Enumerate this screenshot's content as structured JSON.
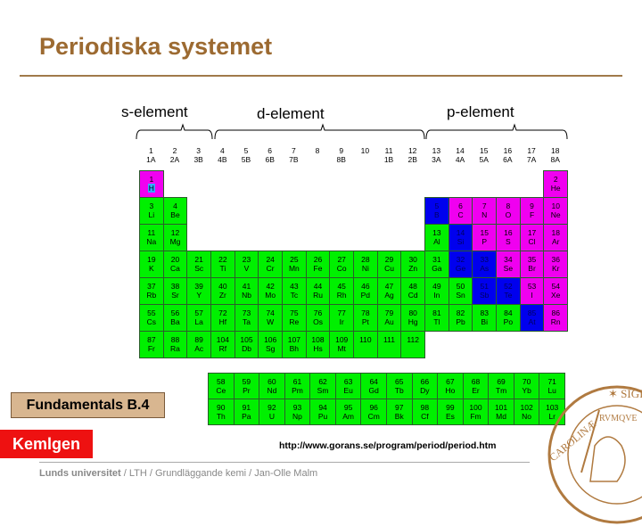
{
  "title": "Periodiska systemet",
  "block_labels": {
    "s": "s-element",
    "d": "d-element",
    "p": "p-element"
  },
  "groups": [
    {
      "n": "1",
      "old": "1A"
    },
    {
      "n": "2",
      "old": "2A"
    },
    {
      "n": "3",
      "old": "3B"
    },
    {
      "n": "4",
      "old": "4B"
    },
    {
      "n": "5",
      "old": "5B"
    },
    {
      "n": "6",
      "old": "6B"
    },
    {
      "n": "7",
      "old": "7B"
    },
    {
      "n": "8",
      "old": ""
    },
    {
      "n": "9",
      "old": "8B"
    },
    {
      "n": "10",
      "old": ""
    },
    {
      "n": "11",
      "old": "1B"
    },
    {
      "n": "12",
      "old": "2B"
    },
    {
      "n": "13",
      "old": "3A"
    },
    {
      "n": "14",
      "old": "4A"
    },
    {
      "n": "15",
      "old": "5A"
    },
    {
      "n": "16",
      "old": "6A"
    },
    {
      "n": "17",
      "old": "7A"
    },
    {
      "n": "18",
      "old": "8A"
    }
  ],
  "colors": {
    "metal": "#00f000",
    "nonmetal": "#f000f0",
    "metalloid": "#0000ee",
    "title": "#9c6a31"
  },
  "elements": [
    [
      "1",
      "H",
      0,
      0,
      "m"
    ],
    [
      "2",
      "He",
      17,
      0,
      "m"
    ],
    [
      "3",
      "Li",
      0,
      1,
      "g"
    ],
    [
      "4",
      "Be",
      1,
      1,
      "g"
    ],
    [
      "5",
      "B",
      12,
      1,
      "b"
    ],
    [
      "6",
      "C",
      13,
      1,
      "m"
    ],
    [
      "7",
      "N",
      14,
      1,
      "m"
    ],
    [
      "8",
      "O",
      15,
      1,
      "m"
    ],
    [
      "9",
      "F",
      16,
      1,
      "m"
    ],
    [
      "10",
      "Ne",
      17,
      1,
      "m"
    ],
    [
      "11",
      "Na",
      0,
      2,
      "g"
    ],
    [
      "12",
      "Mg",
      1,
      2,
      "g"
    ],
    [
      "13",
      "Al",
      12,
      2,
      "g"
    ],
    [
      "14",
      "Si",
      13,
      2,
      "b"
    ],
    [
      "15",
      "P",
      14,
      2,
      "m"
    ],
    [
      "16",
      "S",
      15,
      2,
      "m"
    ],
    [
      "17",
      "Cl",
      16,
      2,
      "m"
    ],
    [
      "18",
      "Ar",
      17,
      2,
      "m"
    ],
    [
      "19",
      "K",
      0,
      3,
      "g"
    ],
    [
      "20",
      "Ca",
      1,
      3,
      "g"
    ],
    [
      "21",
      "Sc",
      2,
      3,
      "g"
    ],
    [
      "22",
      "Ti",
      3,
      3,
      "g"
    ],
    [
      "23",
      "V",
      4,
      3,
      "g"
    ],
    [
      "24",
      "Cr",
      5,
      3,
      "g"
    ],
    [
      "25",
      "Mn",
      6,
      3,
      "g"
    ],
    [
      "26",
      "Fe",
      7,
      3,
      "g"
    ],
    [
      "27",
      "Co",
      8,
      3,
      "g"
    ],
    [
      "28",
      "Ni",
      9,
      3,
      "g"
    ],
    [
      "29",
      "Cu",
      10,
      3,
      "g"
    ],
    [
      "30",
      "Zn",
      11,
      3,
      "g"
    ],
    [
      "31",
      "Ga",
      12,
      3,
      "g"
    ],
    [
      "32",
      "Ge",
      13,
      3,
      "b"
    ],
    [
      "33",
      "As",
      14,
      3,
      "b"
    ],
    [
      "34",
      "Se",
      15,
      3,
      "m"
    ],
    [
      "35",
      "Br",
      16,
      3,
      "m"
    ],
    [
      "36",
      "Kr",
      17,
      3,
      "m"
    ],
    [
      "37",
      "Rb",
      0,
      4,
      "g"
    ],
    [
      "38",
      "Sr",
      1,
      4,
      "g"
    ],
    [
      "39",
      "Y",
      2,
      4,
      "g"
    ],
    [
      "40",
      "Zr",
      3,
      4,
      "g"
    ],
    [
      "41",
      "Nb",
      4,
      4,
      "g"
    ],
    [
      "42",
      "Mo",
      5,
      4,
      "g"
    ],
    [
      "43",
      "Tc",
      6,
      4,
      "g"
    ],
    [
      "44",
      "Ru",
      7,
      4,
      "g"
    ],
    [
      "45",
      "Rh",
      8,
      4,
      "g"
    ],
    [
      "46",
      "Pd",
      9,
      4,
      "g"
    ],
    [
      "47",
      "Ag",
      10,
      4,
      "g"
    ],
    [
      "48",
      "Cd",
      11,
      4,
      "g"
    ],
    [
      "49",
      "In",
      12,
      4,
      "g"
    ],
    [
      "50",
      "Sn",
      13,
      4,
      "g"
    ],
    [
      "51",
      "Sb",
      14,
      4,
      "b"
    ],
    [
      "52",
      "Te",
      15,
      4,
      "b"
    ],
    [
      "53",
      "I",
      16,
      4,
      "m"
    ],
    [
      "54",
      "Xe",
      17,
      4,
      "m"
    ],
    [
      "55",
      "Cs",
      0,
      5,
      "g"
    ],
    [
      "56",
      "Ba",
      1,
      5,
      "g"
    ],
    [
      "57",
      "La",
      2,
      5,
      "g"
    ],
    [
      "72",
      "Hf",
      3,
      5,
      "g"
    ],
    [
      "73",
      "Ta",
      4,
      5,
      "g"
    ],
    [
      "74",
      "W",
      5,
      5,
      "g"
    ],
    [
      "75",
      "Re",
      6,
      5,
      "g"
    ],
    [
      "76",
      "Os",
      7,
      5,
      "g"
    ],
    [
      "77",
      "Ir",
      8,
      5,
      "g"
    ],
    [
      "78",
      "Pt",
      9,
      5,
      "g"
    ],
    [
      "79",
      "Au",
      10,
      5,
      "g"
    ],
    [
      "80",
      "Hg",
      11,
      5,
      "g"
    ],
    [
      "81",
      "Tl",
      12,
      5,
      "g"
    ],
    [
      "82",
      "Pb",
      13,
      5,
      "g"
    ],
    [
      "83",
      "Bi",
      14,
      5,
      "g"
    ],
    [
      "84",
      "Po",
      15,
      5,
      "g"
    ],
    [
      "85",
      "At",
      16,
      5,
      "b"
    ],
    [
      "86",
      "Rn",
      17,
      5,
      "m"
    ],
    [
      "87",
      "Fr",
      0,
      6,
      "g"
    ],
    [
      "88",
      "Ra",
      1,
      6,
      "g"
    ],
    [
      "89",
      "Ac",
      2,
      6,
      "g"
    ],
    [
      "104",
      "Rf",
      3,
      6,
      "g"
    ],
    [
      "105",
      "Db",
      4,
      6,
      "g"
    ],
    [
      "106",
      "Sg",
      5,
      6,
      "g"
    ],
    [
      "107",
      "Bh",
      6,
      6,
      "g"
    ],
    [
      "108",
      "Hs",
      7,
      6,
      "g"
    ],
    [
      "109",
      "Mt",
      8,
      6,
      "g"
    ],
    [
      "110",
      "",
      9,
      6,
      "g"
    ],
    [
      "111",
      "",
      10,
      6,
      "g"
    ],
    [
      "112",
      "",
      11,
      6,
      "g"
    ]
  ],
  "f_block": [
    [
      [
        "58",
        "Ce"
      ],
      [
        "59",
        "Pr"
      ],
      [
        "60",
        "Nd"
      ],
      [
        "61",
        "Pm"
      ],
      [
        "62",
        "Sm"
      ],
      [
        "63",
        "Eu"
      ],
      [
        "64",
        "Gd"
      ],
      [
        "65",
        "Tb"
      ],
      [
        "66",
        "Dy"
      ],
      [
        "67",
        "Ho"
      ],
      [
        "68",
        "Er"
      ],
      [
        "69",
        "Tm"
      ],
      [
        "70",
        "Yb"
      ],
      [
        "71",
        "Lu"
      ]
    ],
    [
      [
        "90",
        "Th"
      ],
      [
        "91",
        "Pa"
      ],
      [
        "92",
        "U"
      ],
      [
        "93",
        "Np"
      ],
      [
        "94",
        "Pu"
      ],
      [
        "95",
        "Am"
      ],
      [
        "96",
        "Cm"
      ],
      [
        "97",
        "Bk"
      ],
      [
        "98",
        "Cf"
      ],
      [
        "99",
        "Es"
      ],
      [
        "100",
        "Fm"
      ],
      [
        "101",
        "Md"
      ],
      [
        "102",
        "No"
      ],
      [
        "103",
        "Lr"
      ]
    ]
  ],
  "badge": "Fundamentals B.4",
  "kemlgen": "Kemlgen",
  "source_url": "http://www.gorans.se/program/period/period.htm",
  "footer": {
    "bold": "Lunds universitet",
    "rest": " / LTH / Grundläggande kemi / Jan-Olle Malm"
  },
  "seal_text": "SIGILLVM UNIVERSITATIS CAROLINAE AD VTRVMQVE"
}
